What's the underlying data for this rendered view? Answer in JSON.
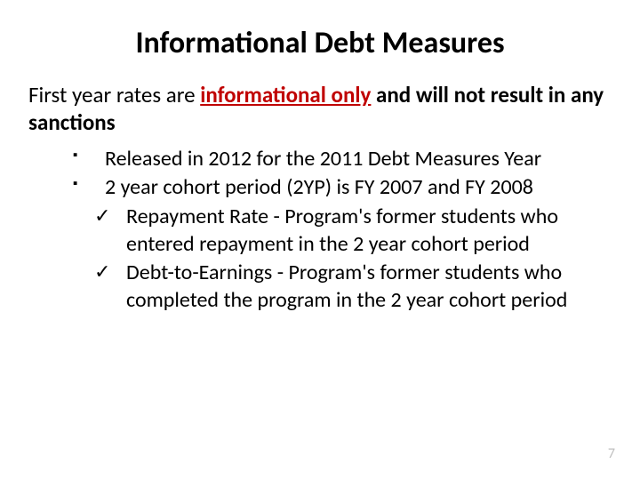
{
  "title": "Informational Debt Measures",
  "intro": {
    "prefix": "First year rates are ",
    "emph": "informational only",
    "mid": " and ",
    "bold_tail": "will not result in any sanctions"
  },
  "bullets": [
    {
      "text": "Released in 2012 for the 2011 Debt Measures Year"
    },
    {
      "text": "2 year cohort period (2YP) is FY 2007 and FY 2008"
    }
  ],
  "sub_bullets": [
    {
      "text": "Repayment Rate - Program's former students who entered repayment in the 2 year cohort period"
    },
    {
      "text": "Debt-to-Earnings - Program's former students who completed the program in the 2 year cohort period"
    }
  ],
  "markers": {
    "square": "▪",
    "check": "✓"
  },
  "page_number": "7",
  "colors": {
    "emph": "#c00000",
    "text": "#000000",
    "page_num": "#bfbfbf",
    "bg": "#ffffff"
  }
}
